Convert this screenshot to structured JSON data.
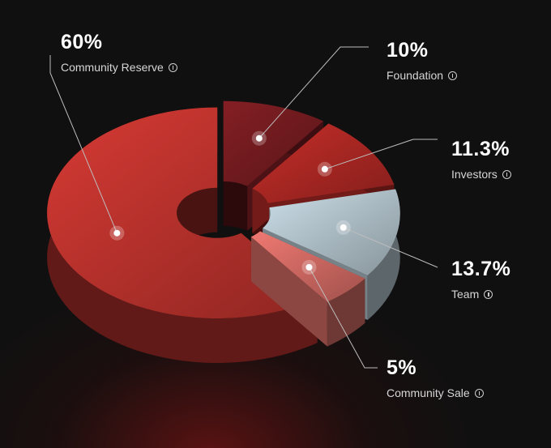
{
  "chart_data": {
    "type": "pie",
    "categories": [
      "Community Reserve",
      "Foundation",
      "Investors",
      "Team",
      "Community Sale"
    ],
    "values": [
      60,
      10,
      11.3,
      13.7,
      5
    ],
    "value_labels": [
      "60%",
      "10%",
      "11.3%",
      "13.7%",
      "5%"
    ],
    "colors": [
      "#b3302b",
      "#6e1a1e",
      "#a52622",
      "#a9b9c1",
      "#c8655f"
    ]
  }
}
